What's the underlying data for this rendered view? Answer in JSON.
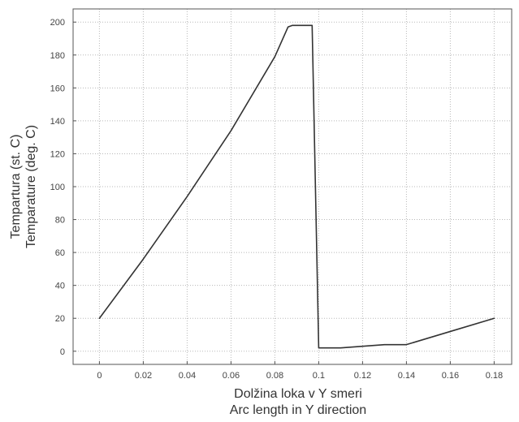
{
  "chart_data": {
    "type": "line",
    "title": "",
    "xlabel_lines": [
      "Dolžina loka v Y smeri",
      "Arc length in Y direction"
    ],
    "ylabel_lines": [
      "Tempartura (st. C)",
      "Temparature (deg. C)"
    ],
    "xlim": [
      -0.012,
      0.188
    ],
    "ylim": [
      -8,
      208
    ],
    "xticks": [
      0,
      0.02,
      0.04,
      0.06,
      0.08,
      0.1,
      0.12,
      0.14,
      0.16,
      0.18
    ],
    "yticks": [
      0,
      20,
      40,
      60,
      80,
      100,
      120,
      140,
      160,
      180,
      200
    ],
    "xtick_labels": [
      "0",
      "0.02",
      "0.04",
      "0.06",
      "0.08",
      "0.1",
      "0.12",
      "0.14",
      "0.16",
      "0.18"
    ],
    "ytick_labels": [
      "0",
      "20",
      "40",
      "60",
      "80",
      "100",
      "120",
      "140",
      "160",
      "180",
      "200"
    ],
    "grid": true,
    "legend": false,
    "series": [
      {
        "color": "#333333",
        "x": [
          0.0,
          0.02,
          0.04,
          0.06,
          0.08,
          0.086,
          0.088,
          0.097,
          0.1,
          0.11,
          0.13,
          0.14,
          0.16,
          0.18
        ],
        "y": [
          20,
          56,
          94,
          134,
          179,
          197,
          198,
          198,
          2,
          2,
          4,
          4,
          12,
          20
        ]
      }
    ]
  }
}
